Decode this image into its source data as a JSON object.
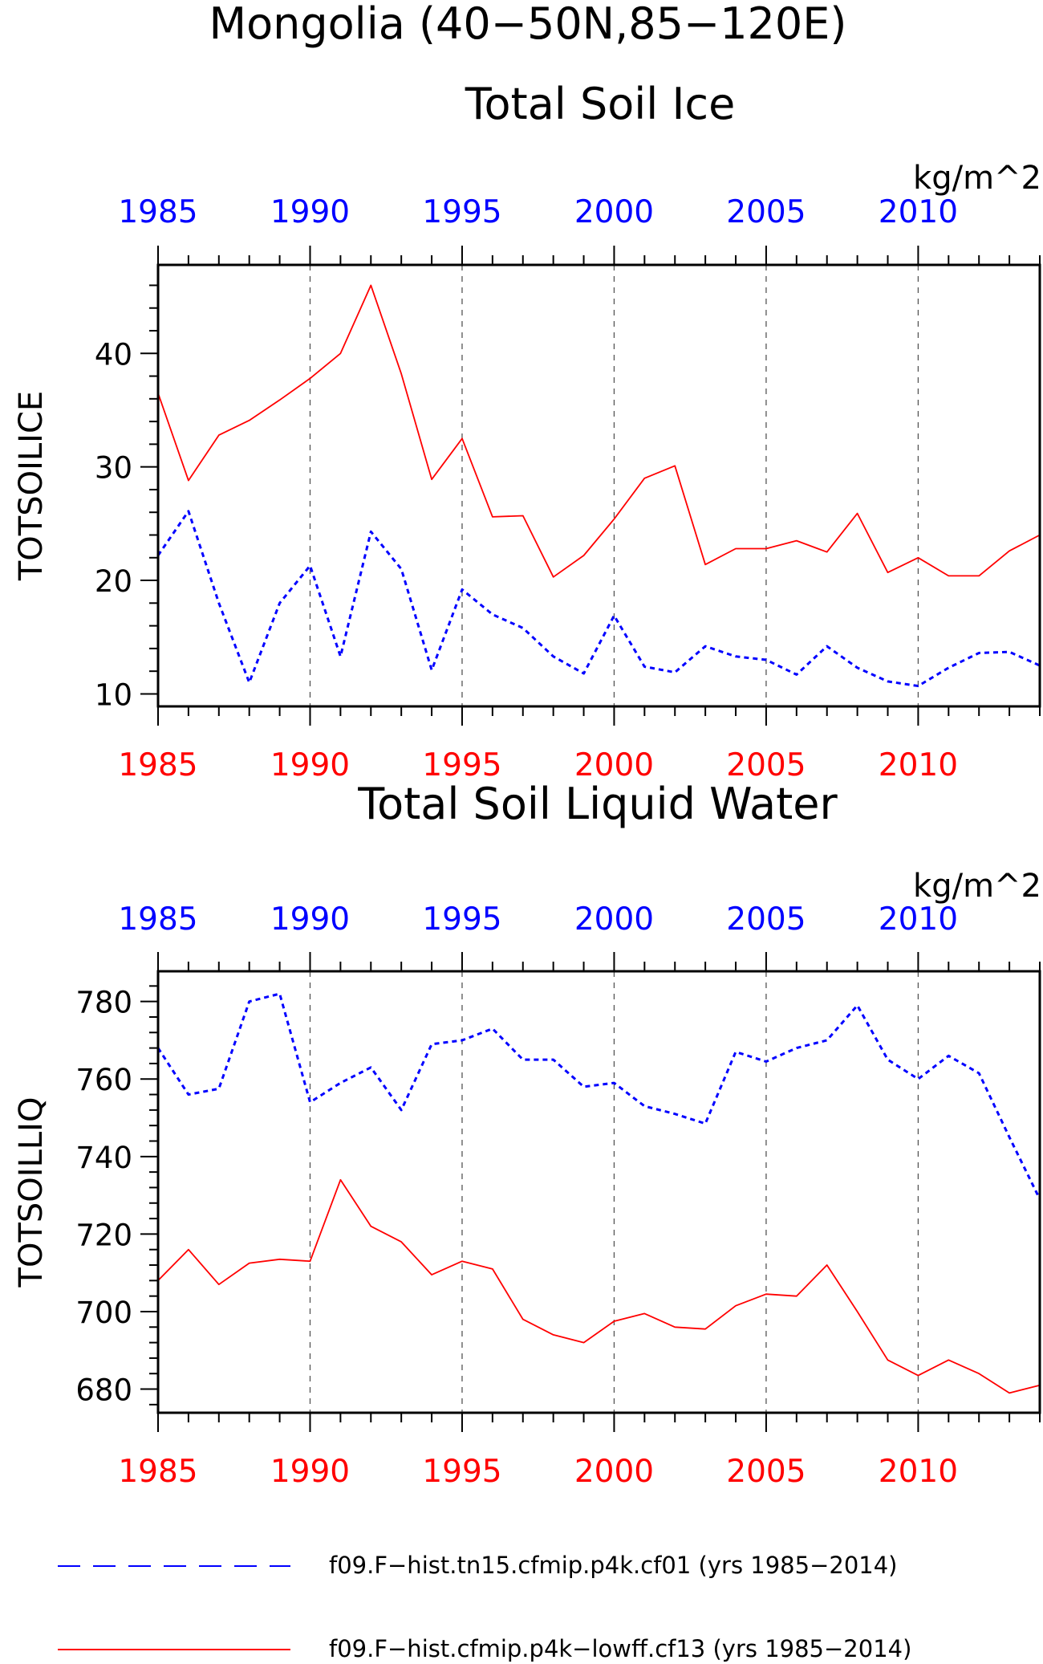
{
  "figure": {
    "title": "Mongolia (40−50N,85−120E)",
    "colors": {
      "red": "#ff0000",
      "blue": "#0000ff",
      "black": "#000000",
      "grid": "#555555"
    }
  },
  "legend": {
    "items": [
      {
        "label": "f09.F−hist.tn15.cfmip.p4k.cf01 (yrs 1985−2014)",
        "color": "#0000ff",
        "style": "dashed"
      },
      {
        "label": "f09.F−hist.cfmip.p4k−lowff.cf13 (yrs 1985−2014)",
        "color": "#ff0000",
        "style": "solid"
      }
    ]
  },
  "chart_data": [
    {
      "type": "line",
      "title": "Total Soil Ice",
      "units": "kg/m^2",
      "ylabel": "TOTSOILICE",
      "xlim": [
        1985,
        2014
      ],
      "ylim": [
        8.9,
        47.8
      ],
      "yticks": [
        10,
        20,
        30,
        40
      ],
      "ytick_labels": [
        "10",
        "20",
        "30",
        "40"
      ],
      "xticks": [
        1985,
        1990,
        1995,
        2000,
        2005,
        2010
      ],
      "xtick_labels": [
        "1985",
        "1990",
        "1995",
        "2000",
        "2005",
        "2010"
      ],
      "grid": "vertical dashed lines at labeled years",
      "x": [
        1985,
        1986,
        1987,
        1988,
        1989,
        1990,
        1991,
        1992,
        1993,
        1994,
        1995,
        1996,
        1997,
        1998,
        1999,
        2000,
        2001,
        2002,
        2003,
        2004,
        2005,
        2006,
        2007,
        2008,
        2009,
        2010,
        2011,
        2012,
        2013,
        2014
      ],
      "series": [
        {
          "color": "#0000ff",
          "dash": "dashed",
          "values": [
            22.2,
            26.1,
            18.0,
            11.0,
            18.0,
            21.3,
            13.3,
            24.3,
            21.0,
            12.1,
            19.2,
            17.0,
            15.8,
            13.3,
            11.8,
            16.9,
            12.4,
            11.9,
            14.2,
            13.3,
            13.0,
            11.7,
            14.2,
            12.3,
            11.1,
            10.7,
            12.3,
            13.6,
            13.7,
            12.5
          ]
        },
        {
          "color": "#ff0000",
          "dash": "solid",
          "values": [
            36.5,
            28.8,
            32.8,
            34.1,
            35.9,
            37.8,
            40.0,
            46.0,
            38.2,
            28.9,
            32.5,
            25.6,
            25.7,
            20.3,
            22.2,
            25.4,
            29.0,
            30.1,
            21.4,
            22.8,
            22.8,
            23.5,
            22.5,
            25.9,
            20.7,
            22.0,
            20.4,
            20.4,
            22.6,
            24.0
          ]
        }
      ]
    },
    {
      "type": "line",
      "title": "Total Soil Liquid Water",
      "units": "kg/m^2",
      "ylabel": "TOTSOILLIQ",
      "xlim": [
        1985,
        2014
      ],
      "ylim": [
        673.9,
        787.8
      ],
      "yticks": [
        680,
        700,
        720,
        740,
        760,
        780
      ],
      "ytick_labels": [
        "680",
        "700",
        "720",
        "740",
        "760",
        "780"
      ],
      "xticks": [
        1985,
        1990,
        1995,
        2000,
        2005,
        2010
      ],
      "xtick_labels": [
        "1985",
        "1990",
        "1995",
        "2000",
        "2005",
        "2010"
      ],
      "grid": "vertical dashed lines at labeled years",
      "x": [
        1985,
        1986,
        1987,
        1988,
        1989,
        1990,
        1991,
        1992,
        1993,
        1994,
        1995,
        1996,
        1997,
        1998,
        1999,
        2000,
        2001,
        2002,
        2003,
        2004,
        2005,
        2006,
        2007,
        2008,
        2009,
        2010,
        2011,
        2012,
        2013,
        2014
      ],
      "series": [
        {
          "color": "#0000ff",
          "dash": "dashed",
          "values": [
            768,
            756,
            757.5,
            780,
            782,
            754,
            759,
            763,
            752,
            769,
            770,
            773,
            765,
            765,
            758,
            759,
            753,
            751,
            748.5,
            767,
            764.5,
            768,
            770,
            779,
            765,
            760,
            766,
            761.5,
            745,
            729
          ]
        },
        {
          "color": "#ff0000",
          "dash": "solid",
          "values": [
            708,
            716,
            707,
            712.5,
            713.5,
            713,
            734,
            722,
            718,
            709.5,
            713,
            711,
            698,
            694,
            692,
            697.5,
            699.5,
            696,
            695.5,
            701.5,
            704.5,
            704,
            712,
            700,
            687.5,
            683.5,
            687.5,
            684,
            679,
            681
          ]
        }
      ]
    }
  ]
}
